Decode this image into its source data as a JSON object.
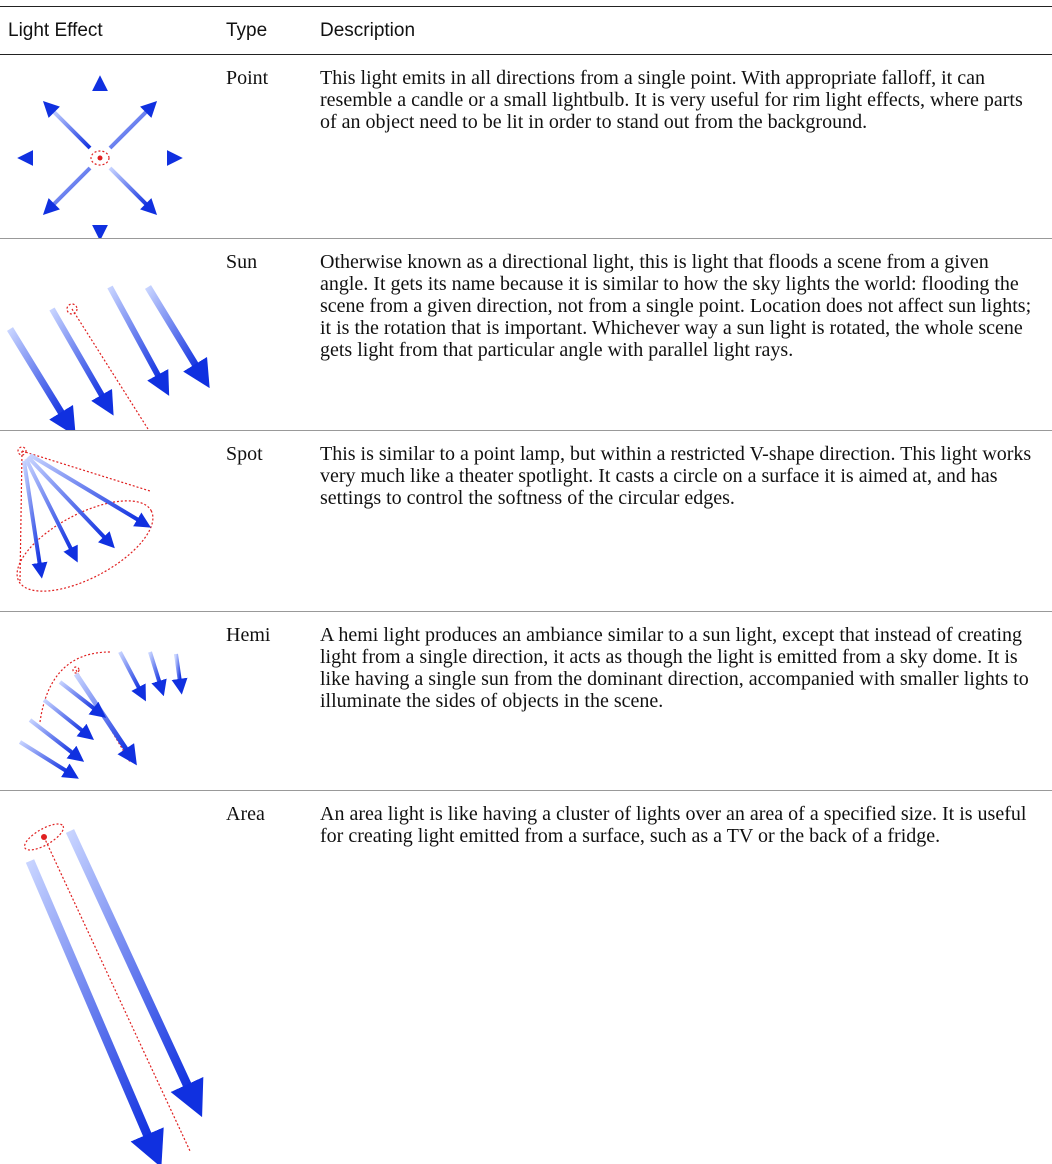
{
  "table": {
    "headers": [
      "Light Effect",
      "Type",
      "Description"
    ],
    "rows": [
      {
        "type": "Point",
        "description": "This light emits in all directions from a single point. With appropriate falloff, it can resemble a candle or a small lightbulb. It is very useful for rim light effects, where parts of an object need to be lit in order to stand out from the background."
      },
      {
        "type": "Sun",
        "description": "Otherwise known as a directional light, this is light that floods a scene from a given angle. It gets its name because it is similar to how the sky lights the world: flooding the scene from a given direction, not from a single point. Location does not affect sun lights; it is the rotation that is important. Whichever way a sun light is rotated, the whole scene gets light from that particular angle with parallel light rays."
      },
      {
        "type": "Spot",
        "description": "This is similar to a point lamp, but within a restricted V-shape direction. This light works very much like a theater spotlight. It casts a circle on a surface it is aimed at, and has settings to control the softness of the circular edges."
      },
      {
        "type": "Hemi",
        "description": "A hemi light produces an ambiance similar to a sun light, except that instead of creating light from a single direction, it acts as though the light is emitted from a sky dome. It is like having a single sun from the dominant direction, accompanied with smaller lights to illuminate the sides of objects in the scene."
      },
      {
        "type": "Area",
        "description": "An area light is like having a cluster of lights over an area of a specified size. It is useful for creating light emitted from a surface, such as a TV or the back of a fridge."
      }
    ]
  }
}
